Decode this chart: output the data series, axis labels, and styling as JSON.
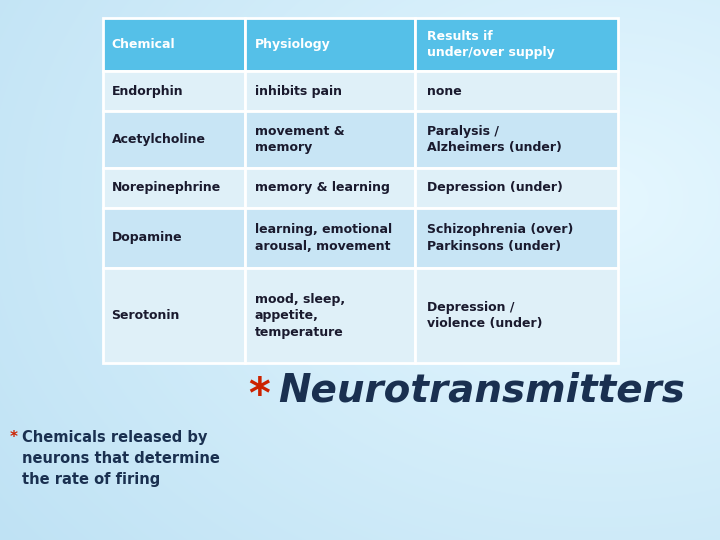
{
  "bg_color": "#b8ddf0",
  "header_bg": "#55c0e8",
  "header_text_color": "#ffffff",
  "row_bg_odd": "#dff0f8",
  "row_bg_even": "#c8e5f5",
  "cell_text_color": "#1a1a2e",
  "border_color": "#ffffff",
  "headers": [
    "Chemical",
    "Physiology",
    "Results if\nunder/over supply"
  ],
  "rows": [
    [
      "Endorphin",
      "inhibits pain",
      "none"
    ],
    [
      "Acetylcholine",
      "movement &\nmemory",
      "Paralysis /\nAlzheimers (under)"
    ],
    [
      "Norepinephrine",
      "memory & learning",
      "Depression (under)"
    ],
    [
      "Dopamine",
      "learning, emotional\narousal, movement",
      "Schizophrenia (over)\nParkinsons (under)"
    ],
    [
      "Serotonin",
      "mood, sleep,\nappetite,\ntemperature",
      "Depression /\nviolence (under)"
    ]
  ],
  "neurotransmitters_color": "#1a3050",
  "neurotransmitters_star_color": "#cc2200",
  "footnote_star_color": "#cc2200",
  "footnote_text": "Chemicals released by\nneurons that determine\nthe rate of firing",
  "footnote_text_color": "#1a3050"
}
